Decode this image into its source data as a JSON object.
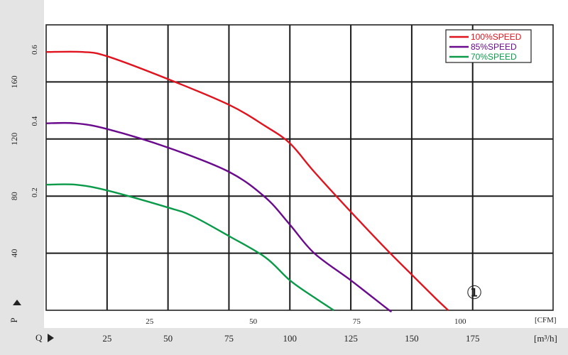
{
  "chart_data": {
    "type": "line",
    "title": "",
    "x_axis_primary": {
      "label": "Q",
      "unit": "[m³/h]",
      "ticks": [
        25,
        50,
        75,
        100,
        125,
        150,
        175
      ],
      "range": [
        0,
        208
      ]
    },
    "x_axis_secondary": {
      "unit": "[CFM]",
      "ticks": [
        25,
        50,
        75,
        100
      ]
    },
    "y_axis_primary": {
      "label": "P",
      "ticks": [
        40,
        80,
        120,
        160
      ]
    },
    "y_axis_secondary": {
      "ticks": [
        0.2,
        0.4,
        0.6
      ]
    },
    "y_range": [
      0,
      200
    ],
    "grid": true,
    "legend_placement": "top-right",
    "annotation": "①",
    "series": [
      {
        "name": "100%SPEED",
        "color": "#e0141e",
        "points": [
          [
            0,
            181
          ],
          [
            15,
            181
          ],
          [
            25,
            178
          ],
          [
            50,
            162
          ],
          [
            75,
            144
          ],
          [
            90,
            129
          ],
          [
            100,
            117
          ],
          [
            110,
            97
          ],
          [
            125,
            69
          ],
          [
            140,
            42
          ],
          [
            150,
            25
          ],
          [
            160,
            8
          ],
          [
            165,
            0
          ]
        ]
      },
      {
        "name": "85%SPEED",
        "color": "#6a0a8c",
        "points": [
          [
            0,
            131
          ],
          [
            12,
            131
          ],
          [
            25,
            127
          ],
          [
            50,
            114
          ],
          [
            75,
            97
          ],
          [
            90,
            79
          ],
          [
            100,
            60
          ],
          [
            110,
            40
          ],
          [
            125,
            21
          ],
          [
            140,
            1
          ],
          [
            141,
            0
          ]
        ]
      },
      {
        "name": "70%SPEED",
        "color": "#0a9a4a",
        "points": [
          [
            0,
            88
          ],
          [
            12,
            88
          ],
          [
            25,
            84
          ],
          [
            50,
            72
          ],
          [
            60,
            66
          ],
          [
            75,
            52
          ],
          [
            90,
            37
          ],
          [
            100,
            21
          ],
          [
            110,
            9
          ],
          [
            118,
            0
          ]
        ]
      }
    ]
  }
}
